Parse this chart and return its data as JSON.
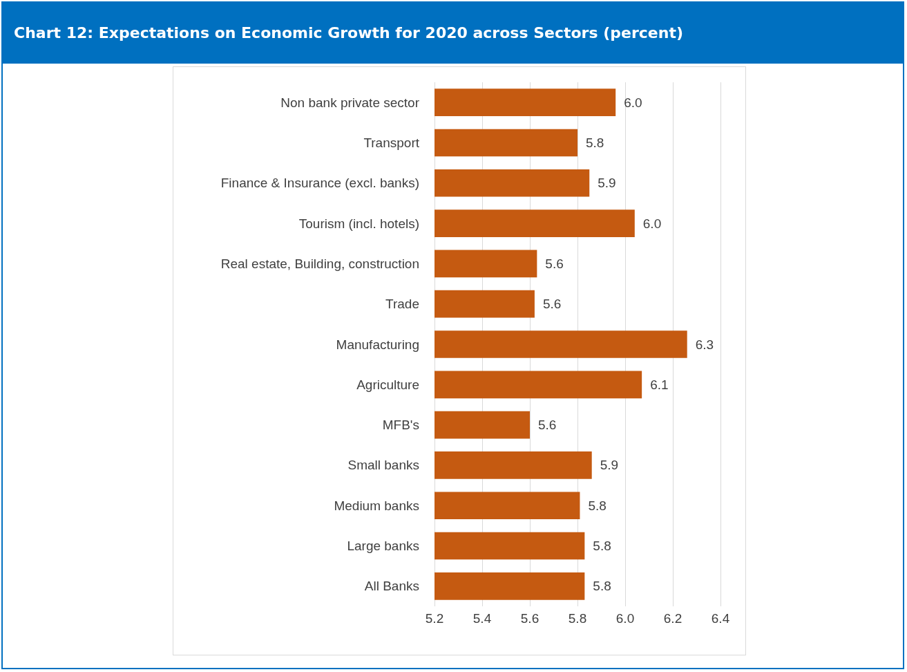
{
  "chart_data": {
    "type": "bar",
    "orientation": "horizontal",
    "title": "Chart 12: Expectations on Economic Growth for 2020 across Sectors (percent)",
    "categories": [
      "Non bank private sector",
      "Transport",
      "Finance & Insurance (excl. banks)",
      "Tourism (incl. hotels)",
      "Real estate, Building, construction",
      "Trade",
      "Manufacturing",
      "Agriculture",
      "MFB's",
      "Small banks",
      "Medium banks",
      "Large banks",
      "All Banks"
    ],
    "values": [
      5.96,
      5.8,
      5.85,
      6.04,
      5.63,
      5.62,
      6.26,
      6.07,
      5.6,
      5.86,
      5.81,
      5.83,
      5.83
    ],
    "value_labels": [
      "6.0",
      "5.8",
      "5.9",
      "6.0",
      "5.6",
      "5.6",
      "6.3",
      "6.1",
      "5.6",
      "5.9",
      "5.8",
      "5.8",
      "5.8"
    ],
    "color": "#c55a11",
    "xlim": [
      5.2,
      6.4
    ],
    "xticks": [
      5.2,
      5.4,
      5.6,
      5.8,
      {
        "value": 6,
        "label": "6.0"
      },
      6.2,
      6.4
    ],
    "grid": "x"
  }
}
